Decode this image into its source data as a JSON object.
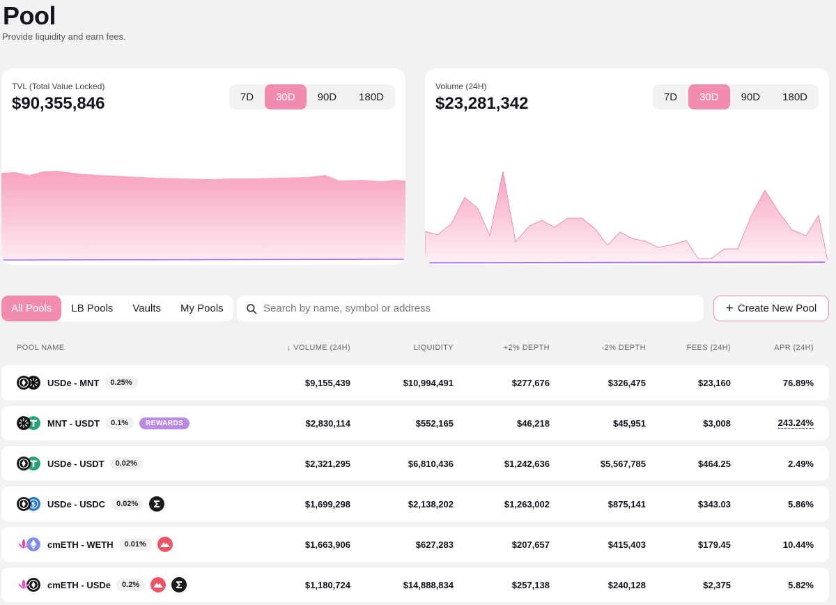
{
  "header": {
    "title": "Pool",
    "subtitle": "Provide liquidity and earn fees."
  },
  "tvl": {
    "label": "TVL (Total Value Locked)",
    "value": "$90,355,846",
    "ranges": [
      "7D",
      "30D",
      "90D",
      "180D"
    ],
    "active_range": "30D"
  },
  "volume": {
    "label": "Volume (24H)",
    "value": "$23,281,342",
    "ranges": [
      "7D",
      "30D",
      "90D",
      "180D"
    ],
    "active_range": "30D"
  },
  "tabs": [
    "All Pools",
    "LB Pools",
    "Vaults",
    "My Pools"
  ],
  "active_tab": "All Pools",
  "search": {
    "placeholder": "Search by name, symbol or address"
  },
  "create_button": {
    "label": "Create New Pool"
  },
  "table": {
    "headers": {
      "pool_name": "POOL NAME",
      "volume": "↓ VOLUME (24H)",
      "liquidity": "LIQUIDITY",
      "plus_depth": "+2% DEPTH",
      "minus_depth": "-2% DEPTH",
      "fees": "FEES (24H)",
      "apr": "APR (24H)"
    },
    "rows": [
      {
        "pair": "USDe - MNT",
        "fee": "0.25%",
        "rewards": "",
        "volume": "$9,155,439",
        "liquidity": "$10,994,491",
        "plus_depth": "$277,676",
        "minus_depth": "$326,475",
        "fees": "$23,160",
        "apr": "76.89%"
      },
      {
        "pair": "MNT - USDT",
        "fee": "0.1%",
        "rewards": "REWARDS",
        "volume": "$2,830,114",
        "liquidity": "$552,165",
        "plus_depth": "$46,218",
        "minus_depth": "$45,951",
        "fees": "$3,008",
        "apr": "243.24%"
      },
      {
        "pair": "USDe - USDT",
        "fee": "0.02%",
        "rewards": "",
        "volume": "$2,321,295",
        "liquidity": "$6,810,436",
        "plus_depth": "$1,242,636",
        "minus_depth": "$5,567,785",
        "fees": "$464.25",
        "apr": "2.49%"
      },
      {
        "pair": "USDe - USDC",
        "fee": "0.02%",
        "rewards": "",
        "volume": "$1,699,298",
        "liquidity": "$2,138,202",
        "plus_depth": "$1,263,002",
        "minus_depth": "$875,141",
        "fees": "$343.03",
        "apr": "5.86%"
      },
      {
        "pair": "cmETH - WETH",
        "fee": "0.01%",
        "rewards": "",
        "volume": "$1,663,906",
        "liquidity": "$627,283",
        "plus_depth": "$207,657",
        "minus_depth": "$415,403",
        "fees": "$179.45",
        "apr": "10.44%"
      },
      {
        "pair": "cmETH - USDe",
        "fee": "0.2%",
        "rewards": "",
        "volume": "$1,180,724",
        "liquidity": "$14,888,834",
        "plus_depth": "$257,138",
        "minus_depth": "$240,128",
        "fees": "$2,375",
        "apr": "5.82%"
      }
    ]
  },
  "colors": {
    "accent": "#f28bb0",
    "rewards": "#b98be6",
    "line": "#9b6bff"
  }
}
